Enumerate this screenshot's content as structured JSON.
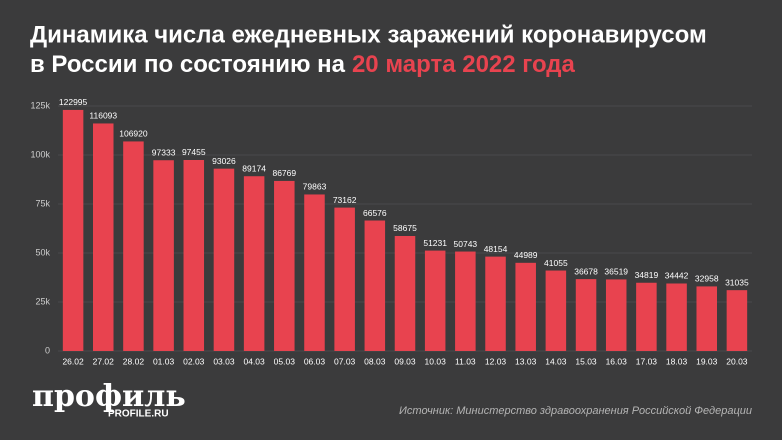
{
  "chart_data": {
    "type": "bar",
    "title": "Динамика числа ежедневных заражений коронавирусом",
    "subtitle": "в России по состоянию на",
    "subtitle_highlight": "20 марта 2022 года",
    "categories": [
      "26.02",
      "27.02",
      "28.02",
      "01.03",
      "02.03",
      "03.03",
      "04.03",
      "05.03",
      "06.03",
      "07.03",
      "08.03",
      "09.03",
      "10.03",
      "11.03",
      "12.03",
      "13.03",
      "14.03",
      "15.03",
      "16.03",
      "17.03",
      "18.03",
      "19.03",
      "20.03"
    ],
    "values": [
      122995,
      116093,
      106920,
      97333,
      97455,
      93026,
      89174,
      86769,
      79863,
      73162,
      66576,
      58675,
      51231,
      50743,
      48154,
      44989,
      41055,
      36678,
      36519,
      34819,
      34442,
      32958,
      31035
    ],
    "color": "#e8434f",
    "ylim": [
      0,
      125000
    ],
    "yticks": [
      0,
      {
        "value": 25000,
        "label": "25k"
      },
      {
        "value": 50000,
        "label": "50k"
      },
      {
        "value": 75000,
        "label": "75k"
      },
      {
        "value": 100000,
        "label": "100k"
      },
      {
        "value": 125000,
        "label": "125k"
      }
    ],
    "grid": true
  },
  "logo": {
    "name": "профиль",
    "site": "PROFILE.RU"
  },
  "source": "Источник: Министерство здравоохранения Российской Федерации"
}
